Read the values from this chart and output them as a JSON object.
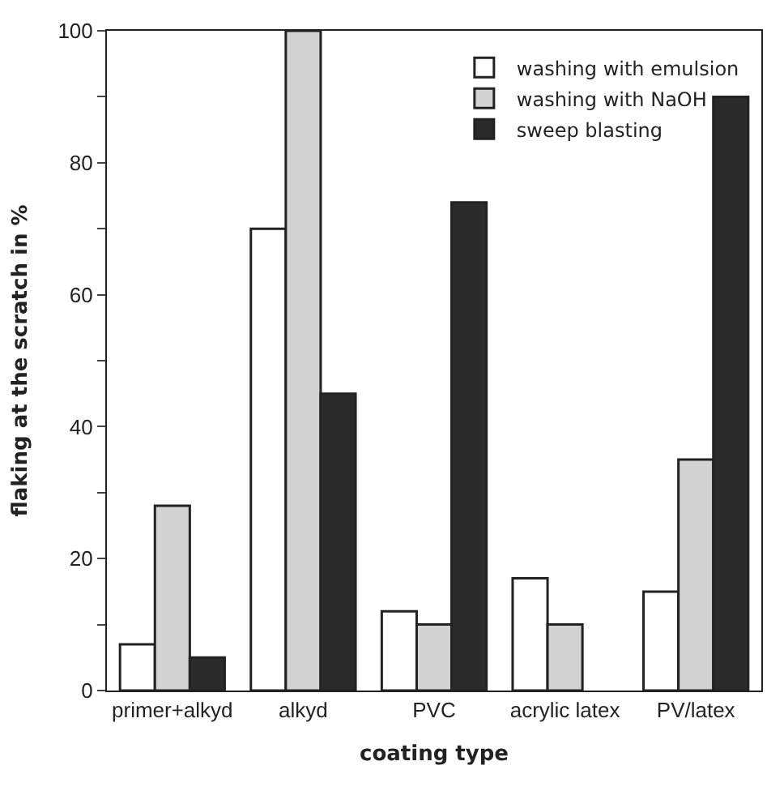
{
  "chart_data": {
    "type": "bar",
    "xlabel": "coating type",
    "ylabel": "flaking at the scratch in %",
    "categories": [
      "primer+alkyd",
      "alkyd",
      "PVC",
      "acrylic latex",
      "PV/latex"
    ],
    "series": [
      {
        "name": "washing with emulsion",
        "color": "#ffffff",
        "values": [
          7,
          70,
          12,
          17,
          15
        ]
      },
      {
        "name": "washing with NaOH",
        "color": "#d3d3d3",
        "values": [
          28,
          100,
          10,
          10,
          35
        ]
      },
      {
        "name": "sweep blasting",
        "color": "#2b2b2b",
        "values": [
          5,
          45,
          74,
          null,
          90
        ]
      }
    ],
    "ylim": [
      0,
      100
    ],
    "yticks": [
      0,
      {
        "value": 10,
        "label": null
      },
      20,
      {
        "value": 30,
        "label": null
      },
      40,
      {
        "value": 50,
        "label": null
      },
      60,
      {
        "value": 70,
        "label": null
      },
      80,
      {
        "value": 90,
        "label": null
      },
      100
    ],
    "legend": "top right"
  }
}
